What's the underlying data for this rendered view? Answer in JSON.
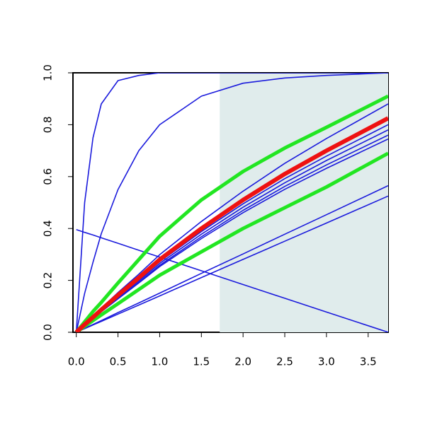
{
  "chart_data": {
    "type": "line",
    "x": [
      0,
      0.1,
      0.2,
      0.3,
      0.5,
      0.75,
      1,
      1.5,
      2,
      2.5,
      3,
      3.74
    ],
    "series": [
      {
        "color": "#1a1adc",
        "width": 1.6,
        "values": [
          0,
          0.5,
          0.75,
          0.88,
          0.97,
          0.99,
          1,
          1,
          1,
          1,
          1,
          1
        ]
      },
      {
        "color": "#1a1adc",
        "width": 1.6,
        "values": [
          0,
          0.15,
          0.27,
          0.38,
          0.55,
          0.7,
          0.8,
          0.91,
          0.96,
          0.98,
          0.99,
          1
        ]
      },
      {
        "color": "#1a1adc",
        "width": 1.6,
        "values": [
          0.396,
          0.385,
          0.375,
          0.364,
          0.343,
          0.316,
          0.29,
          0.237,
          0.184,
          0.131,
          0.078,
          0
        ]
      },
      {
        "color": "#1a1adc",
        "width": 1.6,
        "values": [
          0,
          0.015,
          0.03,
          0.045,
          0.076,
          0.113,
          0.151,
          0.227,
          0.302,
          0.378,
          0.453,
          0.565
        ]
      },
      {
        "color": "#1a1adc",
        "width": 1.6,
        "values": [
          0,
          0.014,
          0.028,
          0.042,
          0.07,
          0.105,
          0.14,
          0.211,
          0.281,
          0.351,
          0.421,
          0.525
        ]
      },
      {
        "color": "#1a1adc",
        "width": 1.6,
        "values": [
          0,
          0.032,
          0.062,
          0.093,
          0.153,
          0.224,
          0.299,
          0.427,
          0.544,
          0.651,
          0.747,
          0.88
        ]
      },
      {
        "color": "#1a1adc",
        "width": 1.6,
        "values": [
          0,
          0.029,
          0.056,
          0.084,
          0.139,
          0.204,
          0.272,
          0.388,
          0.495,
          0.592,
          0.679,
          0.8
        ]
      },
      {
        "color": "#1a1adc",
        "width": 1.6,
        "values": [
          0,
          0.028,
          0.055,
          0.082,
          0.135,
          0.198,
          0.265,
          0.378,
          0.482,
          0.576,
          0.662,
          0.78
        ]
      },
      {
        "color": "#1a1adc",
        "width": 1.6,
        "values": [
          0,
          0.028,
          0.053,
          0.08,
          0.132,
          0.193,
          0.258,
          0.368,
          0.47,
          0.562,
          0.645,
          0.76
        ]
      },
      {
        "color": "#1a1adc",
        "width": 1.6,
        "values": [
          0,
          0.027,
          0.052,
          0.079,
          0.129,
          0.19,
          0.253,
          0.361,
          0.461,
          0.551,
          0.632,
          0.745
        ]
      },
      {
        "color": "#22e622",
        "width": 5,
        "values": [
          0,
          0.04,
          0.08,
          0.115,
          0.19,
          0.28,
          0.37,
          0.51,
          0.62,
          0.71,
          0.79,
          0.91
        ]
      },
      {
        "color": "#22e622",
        "width": 5,
        "values": [
          0,
          0.023,
          0.045,
          0.067,
          0.11,
          0.165,
          0.22,
          0.31,
          0.4,
          0.48,
          0.56,
          0.69
        ]
      },
      {
        "color": "#ee1111",
        "width": 6,
        "values": [
          0,
          0.03,
          0.058,
          0.087,
          0.143,
          0.21,
          0.28,
          0.4,
          0.51,
          0.61,
          0.7,
          0.825
        ]
      }
    ],
    "highlight": {
      "xlim": [
        1.72,
        3.74
      ],
      "color": "#e0ecec"
    },
    "xlim": [
      -0.04,
      3.74
    ],
    "xticks": [
      {
        "value": 0,
        "label": "0.0"
      },
      0.5,
      {
        "value": 1,
        "label": "1.0"
      },
      1.5,
      {
        "value": 2,
        "label": "2.0"
      },
      2.5,
      {
        "value": 3,
        "label": "3.0"
      },
      3.5
    ],
    "ylim": [
      0,
      1
    ],
    "yticks": [
      {
        "value": 0,
        "label": "0.0"
      },
      0.2,
      0.4,
      0.6,
      0.8,
      {
        "value": 1,
        "label": "1.0"
      }
    ]
  }
}
